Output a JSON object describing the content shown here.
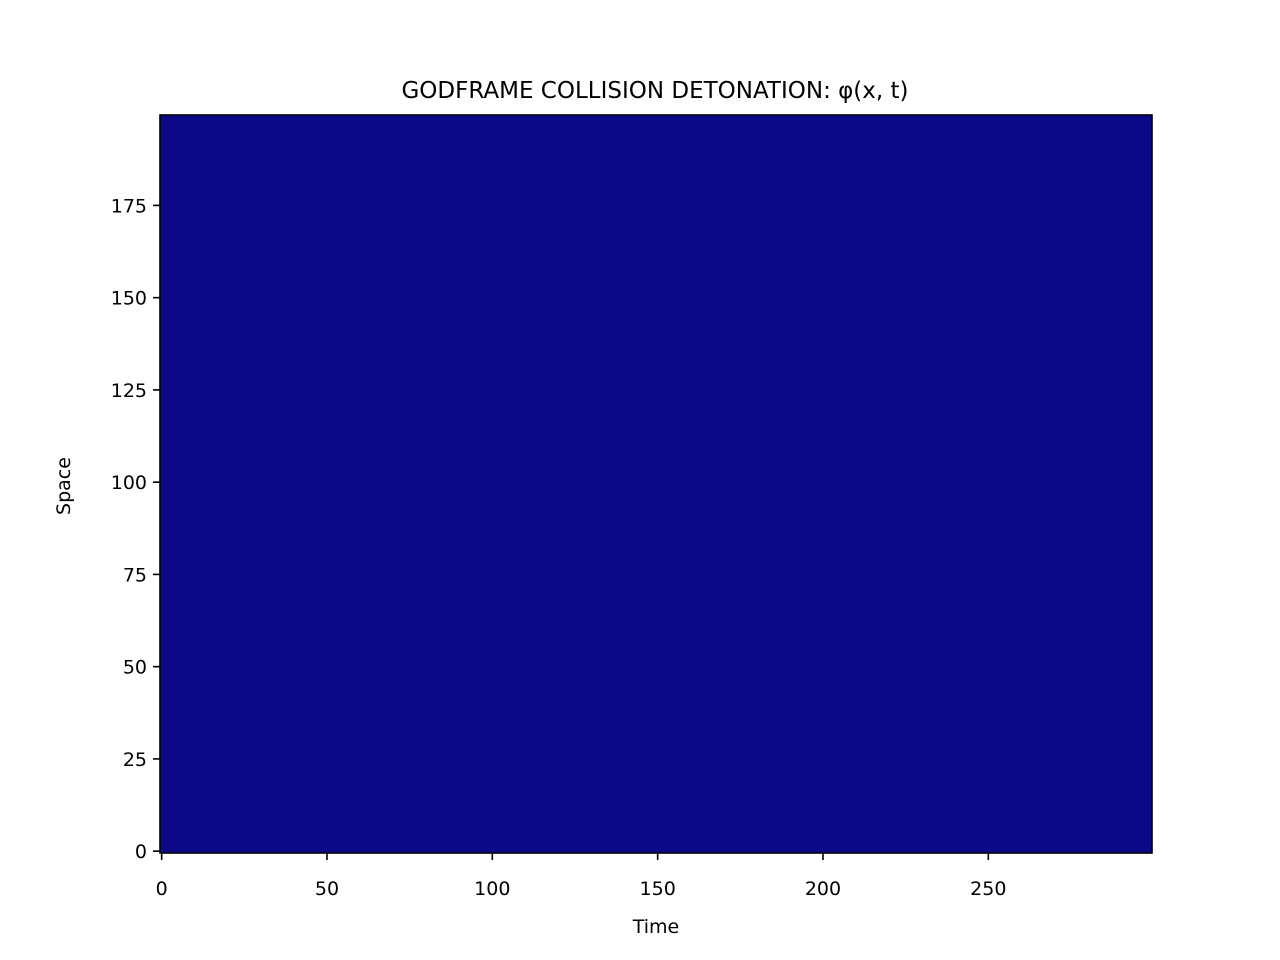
{
  "chart_data": {
    "type": "heatmap",
    "title": "GODFRAME COLLISION DETONATION: φ(x, t)",
    "xlabel": "Time",
    "ylabel": "Space",
    "xlim": [
      -0.5,
      299.5
    ],
    "ylim": [
      -0.5,
      199.5
    ],
    "x_ticks": [
      0,
      50,
      100,
      150,
      200,
      250
    ],
    "y_ticks": [
      0,
      25,
      50,
      75,
      100,
      125,
      150,
      175
    ],
    "grid": false,
    "colormap": "plasma",
    "field_color": "#0d0887",
    "note": ""
  }
}
